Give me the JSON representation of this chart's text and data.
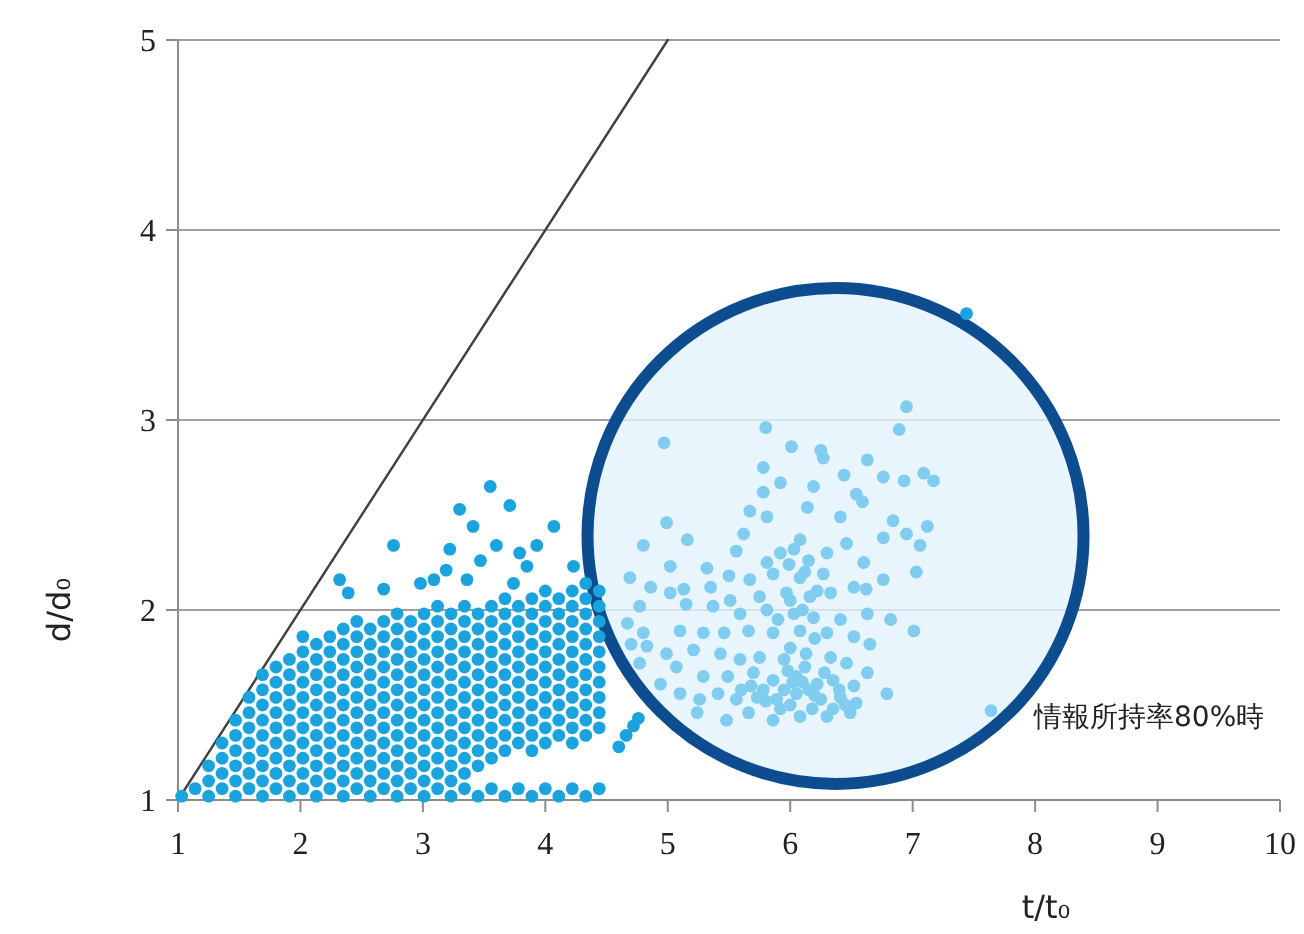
{
  "chart_data": {
    "type": "scatter",
    "xlabel": "t/t₀",
    "ylabel": "d/d₀",
    "xlim": [
      1,
      10
    ],
    "ylim": [
      1,
      5
    ],
    "xticks": [
      1,
      2,
      3,
      4,
      5,
      6,
      7,
      8,
      9,
      10
    ],
    "yticks": [
      1,
      2,
      3,
      4,
      5
    ],
    "grid": "y",
    "marker": "circle",
    "annotations": [
      "情報所持率80%時"
    ],
    "series": [
      {
        "type": "line",
        "x": [
          1,
          5
        ],
        "values": [
          1,
          5
        ],
        "color": "#404040",
        "marker": "none"
      },
      {
        "color": "#1ba3de",
        "x": [
          1.03,
          1.14,
          1.25,
          1.25,
          1.25,
          1.36,
          1.36,
          1.36,
          1.36,
          1.47,
          1.47,
          1.47,
          1.47,
          1.47,
          1.47,
          1.58,
          1.58,
          1.58,
          1.58,
          1.58,
          1.58,
          1.58,
          1.69,
          1.69,
          1.69,
          1.69,
          1.69,
          1.69,
          1.69,
          1.69,
          1.69,
          1.8,
          1.8,
          1.8,
          1.8,
          1.8,
          1.8,
          1.8,
          1.8,
          1.8,
          1.91,
          1.91,
          1.91,
          1.91,
          1.91,
          1.91,
          1.91,
          1.91,
          1.91,
          1.91,
          2.02,
          2.02,
          2.02,
          2.02,
          2.02,
          2.02,
          2.02,
          2.02,
          2.02,
          2.02,
          2.02,
          2.13,
          2.13,
          2.13,
          2.13,
          2.13,
          2.13,
          2.13,
          2.13,
          2.13,
          2.13,
          2.13,
          2.24,
          2.24,
          2.24,
          2.24,
          2.24,
          2.24,
          2.24,
          2.24,
          2.24,
          2.24,
          2.24,
          2.35,
          2.35,
          2.35,
          2.35,
          2.35,
          2.35,
          2.35,
          2.35,
          2.35,
          2.35,
          2.35,
          2.35,
          2.46,
          2.46,
          2.46,
          2.46,
          2.46,
          2.46,
          2.46,
          2.46,
          2.46,
          2.46,
          2.46,
          2.46,
          2.57,
          2.57,
          2.57,
          2.57,
          2.57,
          2.57,
          2.57,
          2.57,
          2.57,
          2.57,
          2.57,
          2.57,
          2.68,
          2.68,
          2.68,
          2.68,
          2.68,
          2.68,
          2.68,
          2.68,
          2.68,
          2.68,
          2.68,
          2.68,
          2.79,
          2.79,
          2.79,
          2.79,
          2.79,
          2.79,
          2.79,
          2.79,
          2.79,
          2.79,
          2.79,
          2.79,
          2.79,
          2.9,
          2.9,
          2.9,
          2.9,
          2.9,
          2.9,
          2.9,
          2.9,
          2.9,
          2.9,
          2.9,
          2.9,
          3.01,
          3.01,
          3.01,
          3.01,
          3.01,
          3.01,
          3.01,
          3.01,
          3.01,
          3.01,
          3.01,
          3.01,
          3.01,
          3.12,
          3.12,
          3.12,
          3.12,
          3.12,
          3.12,
          3.12,
          3.12,
          3.12,
          3.12,
          3.12,
          3.12,
          3.12,
          3.23,
          3.23,
          3.23,
          3.23,
          3.23,
          3.23,
          3.23,
          3.23,
          3.23,
          3.23,
          3.23,
          3.23,
          3.23,
          3.34,
          3.34,
          3.34,
          3.34,
          3.34,
          3.34,
          3.34,
          3.34,
          3.34,
          3.34,
          3.34,
          3.34,
          3.34,
          3.45,
          3.45,
          3.45,
          3.45,
          3.45,
          3.45,
          3.45,
          3.45,
          3.45,
          3.45,
          3.45,
          3.45,
          3.56,
          3.56,
          3.56,
          3.56,
          3.56,
          3.56,
          3.56,
          3.56,
          3.56,
          3.56,
          3.56,
          3.56,
          3.67,
          3.67,
          3.67,
          3.67,
          3.67,
          3.67,
          3.67,
          3.67,
          3.67,
          3.67,
          3.67,
          3.67,
          3.78,
          3.78,
          3.78,
          3.78,
          3.78,
          3.78,
          3.78,
          3.78,
          3.78,
          3.78,
          3.78,
          3.89,
          3.89,
          3.89,
          3.89,
          3.89,
          3.89,
          3.89,
          3.89,
          3.89,
          3.89,
          3.89,
          3.89,
          4,
          4,
          4,
          4,
          4,
          4,
          4,
          4,
          4,
          4,
          4,
          4,
          4.11,
          4.11,
          4.11,
          4.11,
          4.11,
          4.11,
          4.11,
          4.11,
          4.11,
          4.11,
          4.11,
          4.22,
          4.22,
          4.22,
          4.22,
          4.22,
          4.22,
          4.22,
          4.22,
          4.22,
          4.22,
          4.22,
          4.22,
          4.33,
          4.33,
          4.33,
          4.33,
          4.33,
          4.33,
          4.33,
          4.33,
          4.33,
          4.33,
          4.33,
          4.33,
          4.44,
          4.44,
          4.44,
          4.44,
          4.44,
          4.44,
          4.44,
          4.44,
          4.44,
          4.44,
          4.44,
          2.32,
          2.39,
          2.76,
          2.68,
          2.98,
          3.09,
          3.19,
          3.22,
          3.3,
          3.41,
          3.55,
          3.71,
          3.6,
          3.47,
          3.79,
          3.85,
          4.07,
          3.93,
          4.23,
          3.74,
          3.36,
          4.66,
          4.72,
          4.76,
          4.6,
          7.44
        ],
        "values": [
          1.02,
          1.06,
          1.02,
          1.1,
          1.18,
          1.06,
          1.14,
          1.22,
          1.3,
          1.02,
          1.1,
          1.18,
          1.26,
          1.34,
          1.42,
          1.06,
          1.14,
          1.22,
          1.3,
          1.38,
          1.46,
          1.54,
          1.02,
          1.1,
          1.18,
          1.26,
          1.34,
          1.42,
          1.5,
          1.58,
          1.66,
          1.06,
          1.14,
          1.22,
          1.3,
          1.38,
          1.46,
          1.54,
          1.62,
          1.7,
          1.02,
          1.1,
          1.18,
          1.26,
          1.34,
          1.42,
          1.5,
          1.58,
          1.66,
          1.74,
          1.06,
          1.14,
          1.22,
          1.3,
          1.38,
          1.46,
          1.54,
          1.62,
          1.7,
          1.78,
          1.86,
          1.02,
          1.1,
          1.18,
          1.26,
          1.34,
          1.42,
          1.5,
          1.58,
          1.66,
          1.74,
          1.82,
          1.06,
          1.14,
          1.22,
          1.3,
          1.38,
          1.46,
          1.54,
          1.62,
          1.7,
          1.78,
          1.86,
          1.02,
          1.1,
          1.18,
          1.26,
          1.34,
          1.42,
          1.5,
          1.58,
          1.66,
          1.74,
          1.82,
          1.9,
          1.06,
          1.14,
          1.22,
          1.3,
          1.38,
          1.46,
          1.54,
          1.62,
          1.7,
          1.78,
          1.86,
          1.94,
          1.02,
          1.1,
          1.18,
          1.26,
          1.34,
          1.42,
          1.5,
          1.58,
          1.66,
          1.74,
          1.82,
          1.9,
          1.06,
          1.14,
          1.22,
          1.3,
          1.38,
          1.46,
          1.54,
          1.62,
          1.7,
          1.78,
          1.86,
          1.94,
          1.02,
          1.1,
          1.18,
          1.26,
          1.34,
          1.42,
          1.5,
          1.58,
          1.66,
          1.74,
          1.82,
          1.9,
          1.98,
          1.06,
          1.14,
          1.22,
          1.3,
          1.38,
          1.46,
          1.54,
          1.62,
          1.7,
          1.78,
          1.86,
          1.94,
          1.02,
          1.1,
          1.18,
          1.26,
          1.34,
          1.42,
          1.5,
          1.58,
          1.66,
          1.74,
          1.82,
          1.9,
          1.98,
          1.06,
          1.14,
          1.22,
          1.3,
          1.38,
          1.46,
          1.54,
          1.62,
          1.7,
          1.78,
          1.86,
          1.94,
          2.02,
          1.02,
          1.1,
          1.18,
          1.26,
          1.34,
          1.42,
          1.5,
          1.58,
          1.66,
          1.74,
          1.82,
          1.9,
          1.98,
          1.06,
          1.14,
          1.22,
          1.3,
          1.38,
          1.46,
          1.54,
          1.62,
          1.7,
          1.78,
          1.86,
          1.94,
          2.02,
          1.02,
          1.18,
          1.26,
          1.34,
          1.42,
          1.5,
          1.58,
          1.66,
          1.74,
          1.82,
          1.9,
          1.98,
          1.06,
          1.22,
          1.3,
          1.38,
          1.46,
          1.54,
          1.62,
          1.7,
          1.78,
          1.86,
          1.94,
          2.02,
          1.02,
          1.26,
          1.34,
          1.42,
          1.5,
          1.58,
          1.66,
          1.74,
          1.82,
          1.9,
          1.98,
          2.06,
          1.06,
          1.3,
          1.38,
          1.46,
          1.54,
          1.62,
          1.7,
          1.78,
          1.86,
          1.94,
          2.02,
          1.02,
          1.26,
          1.34,
          1.42,
          1.5,
          1.58,
          1.66,
          1.74,
          1.82,
          1.9,
          1.98,
          2.06,
          1.06,
          1.3,
          1.38,
          1.46,
          1.54,
          1.62,
          1.7,
          1.78,
          1.86,
          1.94,
          2.02,
          2.1,
          1.02,
          1.34,
          1.42,
          1.5,
          1.58,
          1.66,
          1.74,
          1.82,
          1.9,
          1.98,
          2.06,
          1.06,
          1.3,
          1.38,
          1.46,
          1.54,
          1.62,
          1.7,
          1.78,
          1.86,
          1.94,
          2.02,
          2.1,
          1.02,
          1.34,
          1.42,
          1.5,
          1.58,
          1.66,
          1.74,
          1.82,
          1.9,
          1.98,
          2.06,
          2.14,
          1.06,
          1.38,
          1.46,
          1.54,
          1.62,
          1.7,
          1.78,
          1.86,
          1.94,
          2.02,
          2.1,
          2.16,
          2.09,
          2.34,
          2.11,
          2.14,
          2.16,
          2.21,
          2.32,
          2.53,
          2.44,
          2.65,
          2.55,
          2.34,
          2.26,
          2.3,
          2.23,
          2.44,
          2.34,
          2.23,
          2.14,
          2.16,
          1.34,
          1.39,
          1.43,
          1.28,
          3.56
        ]
      },
      {
        "color": "#80cdef",
        "x": [
          4.97,
          5.8,
          6.95,
          6.89,
          6.01,
          6.25,
          6.27,
          6.63,
          5.78,
          7.09,
          7.17,
          6.93,
          6.44,
          6.76,
          5.92,
          6.19,
          5.78,
          6.54,
          6.59,
          5.67,
          6.14,
          4.99,
          5.81,
          6.41,
          6.84,
          7.12,
          6.95,
          5.62,
          6.76,
          5.16,
          4.8,
          7.06,
          6.46,
          6.08,
          5.56,
          5.92,
          6.03,
          6.3,
          6.6,
          5.02,
          5.32,
          5.81,
          5.99,
          6.15,
          7.03,
          4.69,
          4.86,
          5.5,
          5.67,
          5.86,
          6.08,
          6.27,
          6.52,
          6.62,
          6.76,
          5.02,
          5.13,
          5.35,
          5.51,
          5.75,
          5.97,
          6.16,
          6.33,
          4.77,
          5.15,
          5.37,
          5.59,
          5.81,
          6.03,
          6.19,
          6.41,
          6.63,
          6.82,
          7.01,
          4.67,
          4.8,
          5.1,
          5.29,
          5.46,
          5.66,
          5.86,
          6.08,
          6.3,
          6.52,
          6.65,
          4.7,
          4.83,
          4.99,
          5.21,
          5.43,
          5.59,
          5.75,
          5.95,
          6.13,
          6.33,
          6.46,
          6.63,
          4.77,
          5.07,
          5.29,
          5.49,
          5.7,
          5.86,
          6.05,
          6.22,
          6.35,
          6.52,
          6.79,
          4.94,
          5.1,
          5.26,
          5.41,
          5.56,
          5.73,
          5.89,
          6.05,
          6.25,
          6.41,
          6.54,
          5.24,
          5.48,
          5.66,
          5.86,
          6.08,
          6.3,
          6.49,
          7.64,
          5.95,
          6.15,
          6,
          6.18,
          5.78,
          6.28,
          5.98,
          6.4,
          5.68,
          6.12,
          5.92,
          6.45,
          6.2,
          6.02,
          5.8,
          6.35,
          5.6,
          6.1,
          6,
          6.2,
          6.1,
          6.22,
          5.9,
          6,
          6.12
        ],
        "values": [
          2.88,
          2.96,
          3.07,
          2.95,
          2.86,
          2.84,
          2.8,
          2.79,
          2.75,
          2.72,
          2.68,
          2.68,
          2.71,
          2.7,
          2.67,
          2.65,
          2.62,
          2.61,
          2.57,
          2.52,
          2.54,
          2.46,
          2.49,
          2.49,
          2.47,
          2.44,
          2.4,
          2.4,
          2.38,
          2.37,
          2.34,
          2.34,
          2.35,
          2.37,
          2.31,
          2.3,
          2.32,
          2.3,
          2.25,
          2.23,
          2.22,
          2.25,
          2.24,
          2.26,
          2.2,
          2.17,
          2.12,
          2.18,
          2.16,
          2.19,
          2.17,
          2.19,
          2.12,
          2.11,
          2.16,
          2.09,
          2.11,
          2.12,
          2.05,
          2.07,
          2.09,
          2.07,
          2.09,
          2.02,
          2.03,
          2.02,
          1.98,
          2,
          1.98,
          1.96,
          1.95,
          1.98,
          1.95,
          1.89,
          1.93,
          1.88,
          1.89,
          1.88,
          1.88,
          1.89,
          1.88,
          1.89,
          1.88,
          1.86,
          1.82,
          1.82,
          1.81,
          1.77,
          1.79,
          1.77,
          1.74,
          1.75,
          1.74,
          1.77,
          1.75,
          1.72,
          1.67,
          1.72,
          1.7,
          1.65,
          1.65,
          1.67,
          1.63,
          1.65,
          1.61,
          1.63,
          1.6,
          1.56,
          1.61,
          1.56,
          1.53,
          1.56,
          1.53,
          1.54,
          1.53,
          1.56,
          1.53,
          1.54,
          1.51,
          1.46,
          1.42,
          1.46,
          1.42,
          1.44,
          1.44,
          1.46,
          1.47,
          1.58,
          1.58,
          1.5,
          1.48,
          1.58,
          1.67,
          1.68,
          1.58,
          1.6,
          1.7,
          1.48,
          1.5,
          1.55,
          1.62,
          1.52,
          1.48,
          1.58,
          1.62,
          1.8,
          1.85,
          2,
          2.1,
          1.95,
          2.05,
          2.2
        ]
      }
    ]
  }
}
